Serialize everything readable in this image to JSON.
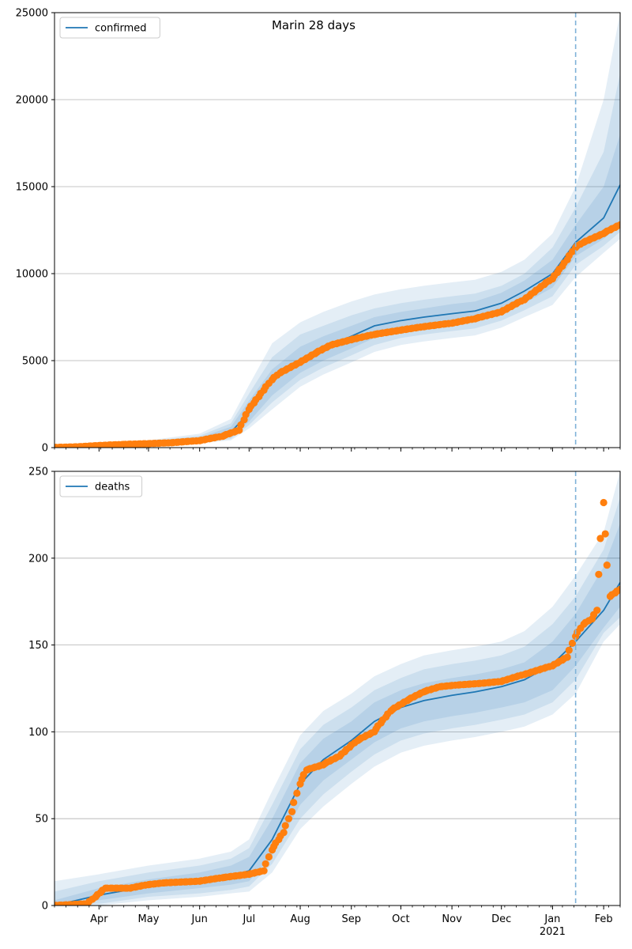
{
  "figure_title": "Marin 28 days",
  "colors": {
    "model_line": "#1f77b4",
    "observed": "#ff7f0e",
    "band": "#1f77b4",
    "today_line": "#7fb2d8",
    "grid": "#b0b0b0"
  },
  "x_axis": {
    "start": "2020-03-05",
    "end": "2021-02-11",
    "today": "2021-01-15",
    "month_ticks": [
      {
        "date": "2020-04-01",
        "label": "Apr"
      },
      {
        "date": "2020-05-01",
        "label": "May"
      },
      {
        "date": "2020-06-01",
        "label": "Jun"
      },
      {
        "date": "2020-07-01",
        "label": "Jul"
      },
      {
        "date": "2020-08-01",
        "label": "Aug"
      },
      {
        "date": "2020-09-01",
        "label": "Sep"
      },
      {
        "date": "2020-10-01",
        "label": "Oct"
      },
      {
        "date": "2020-11-01",
        "label": "Nov"
      },
      {
        "date": "2020-12-01",
        "label": "Dec"
      },
      {
        "date": "2021-01-01",
        "label": "Jan"
      },
      {
        "date": "2021-02-01",
        "label": "Feb"
      }
    ],
    "year_label": {
      "date": "2021-01-01",
      "label": "2021"
    }
  },
  "chart_data": [
    {
      "type": "line",
      "title": "Marin 28 days",
      "legend": {
        "label": "confirmed",
        "placement": "upper-left"
      },
      "ylim": [
        0,
        25000
      ],
      "yticks": [
        "0",
        "5000",
        "10000",
        "15000",
        "20000",
        "25000"
      ],
      "grid": "horizontal",
      "model": {
        "dates": [
          "2020-03-05",
          "2020-04-01",
          "2020-05-01",
          "2020-06-01",
          "2020-06-20",
          "2020-07-01",
          "2020-07-15",
          "2020-08-01",
          "2020-08-15",
          "2020-09-01",
          "2020-09-15",
          "2020-10-01",
          "2020-10-15",
          "2020-11-01",
          "2020-11-15",
          "2020-12-01",
          "2020-12-15",
          "2021-01-01",
          "2021-01-15",
          "2021-02-01",
          "2021-02-11"
        ],
        "median": [
          0,
          120,
          250,
          450,
          900,
          2000,
          3800,
          5000,
          5700,
          6400,
          7000,
          7300,
          7500,
          7700,
          7850,
          8300,
          9000,
          10000,
          11800,
          13200,
          15100
        ],
        "band_68": [
          [
            0,
            0
          ],
          [
            90,
            150
          ],
          [
            200,
            310
          ],
          [
            350,
            580
          ],
          [
            600,
            1200
          ],
          [
            1500,
            2700
          ],
          [
            3000,
            4500
          ],
          [
            4300,
            5800
          ],
          [
            5000,
            6400
          ],
          [
            5700,
            7000
          ],
          [
            6300,
            7500
          ],
          [
            6700,
            7800
          ],
          [
            6900,
            8000
          ],
          [
            7100,
            8250
          ],
          [
            7250,
            8400
          ],
          [
            7700,
            8900
          ],
          [
            8300,
            9600
          ],
          [
            9200,
            10800
          ],
          [
            11000,
            12800
          ],
          [
            12000,
            15000
          ],
          [
            12800,
            18000
          ]
        ],
        "band_90": [
          [
            0,
            0
          ],
          [
            70,
            180
          ],
          [
            170,
            360
          ],
          [
            300,
            680
          ],
          [
            500,
            1400
          ],
          [
            1300,
            3100
          ],
          [
            2600,
            5200
          ],
          [
            3900,
            6500
          ],
          [
            4600,
            7000
          ],
          [
            5300,
            7600
          ],
          [
            5900,
            8000
          ],
          [
            6300,
            8300
          ],
          [
            6500,
            8500
          ],
          [
            6700,
            8700
          ],
          [
            6850,
            8850
          ],
          [
            7300,
            9300
          ],
          [
            7900,
            10000
          ],
          [
            8700,
            11500
          ],
          [
            10500,
            13800
          ],
          [
            11600,
            17000
          ],
          [
            12400,
            21500
          ]
        ],
        "band_98": [
          [
            0,
            0
          ],
          [
            50,
            220
          ],
          [
            140,
            420
          ],
          [
            250,
            800
          ],
          [
            420,
            1650
          ],
          [
            1100,
            3600
          ],
          [
            2200,
            6000
          ],
          [
            3500,
            7200
          ],
          [
            4200,
            7800
          ],
          [
            4900,
            8400
          ],
          [
            5500,
            8800
          ],
          [
            5900,
            9100
          ],
          [
            6100,
            9300
          ],
          [
            6300,
            9500
          ],
          [
            6450,
            9650
          ],
          [
            6900,
            10100
          ],
          [
            7500,
            10800
          ],
          [
            8200,
            12300
          ],
          [
            9800,
            15000
          ],
          [
            11200,
            20000
          ],
          [
            12000,
            25000
          ]
        ]
      },
      "observed": {
        "dates": [
          "2020-03-05",
          "2020-03-20",
          "2020-04-01",
          "2020-04-15",
          "2020-05-01",
          "2020-05-15",
          "2020-06-01",
          "2020-06-15",
          "2020-06-25",
          "2020-07-01",
          "2020-07-10",
          "2020-07-15",
          "2020-07-20",
          "2020-08-01",
          "2020-08-10",
          "2020-08-20",
          "2020-09-01",
          "2020-09-15",
          "2020-10-01",
          "2020-10-15",
          "2020-11-01",
          "2020-11-15",
          "2020-12-01",
          "2020-12-15",
          "2021-01-01",
          "2021-01-10",
          "2021-01-15",
          "2021-01-20",
          "2021-02-01",
          "2021-02-11"
        ],
        "values": [
          10,
          50,
          120,
          180,
          230,
          280,
          400,
          650,
          1000,
          2200,
          3300,
          3900,
          4300,
          4900,
          5400,
          5900,
          6200,
          6500,
          6750,
          6950,
          7150,
          7400,
          7800,
          8500,
          9700,
          10800,
          11500,
          11800,
          12300,
          12800
        ]
      }
    },
    {
      "type": "line",
      "legend": {
        "label": "deaths",
        "placement": "upper-left"
      },
      "ylim": [
        0,
        250
      ],
      "yticks": [
        "0",
        "50",
        "100",
        "150",
        "200",
        "250"
      ],
      "grid": "horizontal",
      "model": {
        "dates": [
          "2020-03-05",
          "2020-04-01",
          "2020-05-01",
          "2020-06-01",
          "2020-06-20",
          "2020-07-01",
          "2020-07-15",
          "2020-08-01",
          "2020-08-15",
          "2020-09-01",
          "2020-09-15",
          "2020-10-01",
          "2020-10-15",
          "2020-11-01",
          "2020-11-15",
          "2020-12-01",
          "2020-12-15",
          "2021-01-01",
          "2021-01-15",
          "2021-02-01",
          "2021-02-11"
        ],
        "median": [
          0,
          6,
          11,
          14,
          17,
          20,
          38,
          70,
          84,
          95,
          106,
          114,
          118,
          121,
          123,
          126,
          130,
          139,
          152,
          170,
          186
        ],
        "band_68": [
          [
            0,
            3
          ],
          [
            3,
            10
          ],
          [
            7,
            15
          ],
          [
            10,
            19
          ],
          [
            12,
            23
          ],
          [
            14,
            28
          ],
          [
            29,
            50
          ],
          [
            58,
            82
          ],
          [
            72,
            96
          ],
          [
            84,
            106
          ],
          [
            94,
            117
          ],
          [
            102,
            124
          ],
          [
            106,
            128
          ],
          [
            109,
            131
          ],
          [
            111,
            133
          ],
          [
            114,
            136
          ],
          [
            117,
            140
          ],
          [
            124,
            152
          ],
          [
            138,
            168
          ],
          [
            160,
            195
          ],
          [
            172,
            220
          ]
        ],
        "band_90": [
          [
            0,
            8
          ],
          [
            1,
            14
          ],
          [
            5,
            19
          ],
          [
            7,
            23
          ],
          [
            9,
            27
          ],
          [
            11,
            33
          ],
          [
            24,
            58
          ],
          [
            50,
            90
          ],
          [
            64,
            104
          ],
          [
            77,
            114
          ],
          [
            87,
            124
          ],
          [
            95,
            131
          ],
          [
            99,
            136
          ],
          [
            102,
            139
          ],
          [
            104,
            141
          ],
          [
            107,
            144
          ],
          [
            110,
            149
          ],
          [
            117,
            162
          ],
          [
            130,
            178
          ],
          [
            157,
            205
          ],
          [
            166,
            235
          ]
        ],
        "band_98": [
          [
            0,
            14
          ],
          [
            0,
            18
          ],
          [
            3,
            23
          ],
          [
            5,
            27
          ],
          [
            7,
            31
          ],
          [
            8,
            38
          ],
          [
            19,
            66
          ],
          [
            44,
            98
          ],
          [
            57,
            112
          ],
          [
            70,
            122
          ],
          [
            80,
            132
          ],
          [
            88,
            139
          ],
          [
            92,
            144
          ],
          [
            95,
            147
          ],
          [
            97,
            149
          ],
          [
            100,
            152
          ],
          [
            103,
            158
          ],
          [
            110,
            172
          ],
          [
            122,
            190
          ],
          [
            152,
            215
          ],
          [
            162,
            250
          ]
        ]
      },
      "observed": {
        "dates": [
          "2020-03-05",
          "2020-03-25",
          "2020-03-30",
          "2020-04-05",
          "2020-04-20",
          "2020-05-01",
          "2020-05-10",
          "2020-06-01",
          "2020-06-15",
          "2020-07-01",
          "2020-07-10",
          "2020-07-15",
          "2020-07-22",
          "2020-07-27",
          "2020-08-01",
          "2020-08-05",
          "2020-08-15",
          "2020-08-25",
          "2020-09-05",
          "2020-09-15",
          "2020-09-25",
          "2020-10-05",
          "2020-10-15",
          "2020-10-25",
          "2020-11-05",
          "2020-11-20",
          "2020-12-01",
          "2020-12-15",
          "2021-01-01",
          "2021-01-10",
          "2021-01-15",
          "2021-01-20",
          "2021-01-25",
          "2021-01-28",
          "2021-02-01",
          "2021-02-05",
          "2021-02-11"
        ],
        "values": [
          0,
          1,
          5,
          10,
          10,
          12,
          13,
          14,
          16,
          18,
          20,
          32,
          42,
          54,
          70,
          78,
          81,
          86,
          95,
          100,
          112,
          118,
          123,
          126,
          127,
          128,
          129,
          133,
          138,
          143,
          155,
          162,
          165,
          170,
          232,
          178,
          182
        ]
      }
    }
  ]
}
